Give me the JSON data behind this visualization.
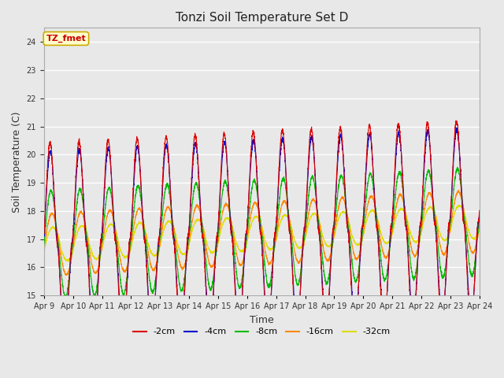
{
  "title": "Tonzi Soil Temperature Set D",
  "xlabel": "Time",
  "ylabel": "Soil Temperature (C)",
  "ylim": [
    15.0,
    24.5
  ],
  "yticks": [
    15.0,
    16.0,
    17.0,
    18.0,
    19.0,
    20.0,
    21.0,
    22.0,
    23.0,
    24.0
  ],
  "legend_entries": [
    "-2cm",
    "-4cm",
    "-8cm",
    "-16cm",
    "-32cm"
  ],
  "legend_colors": [
    "#dd0000",
    "#0000cc",
    "#00bb00",
    "#ff8800",
    "#dddd00"
  ],
  "annotation_text": "TZ_fmet",
  "annotation_bg": "#ffffcc",
  "annotation_border": "#ccaa00",
  "annotation_text_color": "#cc0000",
  "plot_bg": "#e8e8e8",
  "fig_bg": "#e8e8e8",
  "n_days": 15,
  "samples_per_day": 288,
  "start_day": 9,
  "base_temp": 16.8,
  "daily_mean_increase": 0.055
}
